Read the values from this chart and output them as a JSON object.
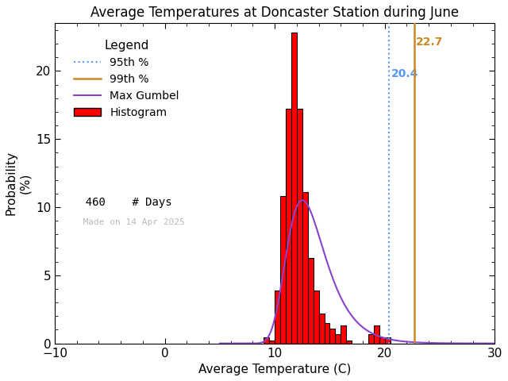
{
  "title": "Average Temperatures at Doncaster Station during June",
  "xlabel": "Average Temperature (C)",
  "ylabel_line1": "Probability",
  "ylabel_line2": "(%)",
  "xlim": [
    -10,
    30
  ],
  "ylim": [
    0,
    23.5
  ],
  "xticks": [
    -10,
    0,
    10,
    20,
    30
  ],
  "yticks": [
    0,
    5,
    10,
    15,
    20
  ],
  "bar_edges": [
    9.0,
    9.5,
    10.0,
    10.5,
    11.0,
    11.5,
    12.0,
    12.5,
    13.0,
    13.5,
    14.0,
    14.5,
    15.0,
    15.5,
    16.0,
    16.5,
    17.0,
    17.5,
    18.0,
    18.5,
    19.0,
    19.5,
    20.0,
    20.5,
    21.0,
    21.5,
    22.0,
    22.5
  ],
  "bar_heights": [
    0.43,
    0.22,
    3.9,
    10.8,
    17.2,
    22.8,
    17.2,
    11.1,
    6.3,
    3.9,
    2.2,
    1.5,
    1.1,
    0.65,
    1.3,
    0.22,
    0.0,
    0.0,
    0.0,
    0.65,
    1.3,
    0.43,
    0.43,
    0.0,
    0.0,
    0.0,
    0.0
  ],
  "bar_color": "#ff0000",
  "bar_edgecolor": "#000000",
  "gumbel_mu": 12.5,
  "gumbel_beta": 1.75,
  "percentile_95": 20.4,
  "percentile_99": 22.7,
  "percentile_95_color": "#5599ff",
  "percentile_99_color": "#cc8822",
  "gumbel_color": "#8844cc",
  "n_days": 460,
  "made_on": "Made on 14 Apr 2025",
  "legend_title": "Legend",
  "background_color": "#ffffff",
  "title_fontsize": 12,
  "label_fontsize": 11,
  "tick_fontsize": 11,
  "legend_fontsize": 10
}
